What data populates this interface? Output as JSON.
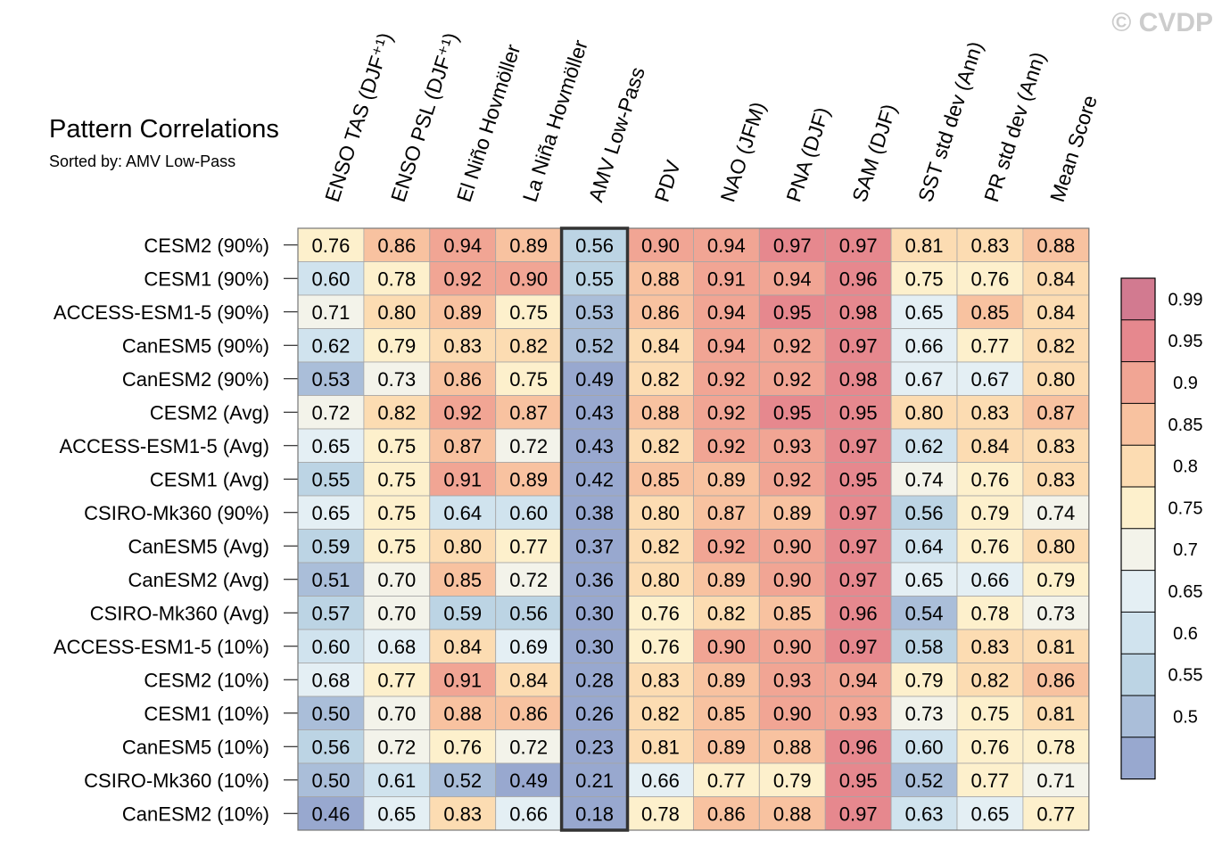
{
  "watermark": "© CVDP",
  "chart_data": {
    "type": "heatmap",
    "title": "Pattern Correlations",
    "subtitle": "Sorted by: AMV Low-Pass",
    "columns": [
      "ENSO TAS (DJF⁺¹)",
      "ENSO PSL (DJF⁺¹)",
      "El Niño Hovmöller",
      "La Niña Hovmöller",
      "AMV Low-Pass",
      "PDV",
      "NAO (JFM)",
      "PNA (DJF)",
      "SAM (DJF)",
      "SST std dev (Ann)",
      "PR std dev (Ann)",
      "Mean Score"
    ],
    "highlighted_column": "AMV Low-Pass",
    "rows": [
      {
        "label": "CESM2 (90%)",
        "values": [
          "0.76",
          "0.86",
          "0.94",
          "0.89",
          "0.56",
          "0.90",
          "0.94",
          "0.97",
          "0.97",
          "0.81",
          "0.83",
          "0.88"
        ]
      },
      {
        "label": "CESM1 (90%)",
        "values": [
          "0.60",
          "0.78",
          "0.92",
          "0.90",
          "0.55",
          "0.88",
          "0.91",
          "0.94",
          "0.96",
          "0.75",
          "0.76",
          "0.84"
        ]
      },
      {
        "label": "ACCESS-ESM1-5 (90%)",
        "values": [
          "0.71",
          "0.80",
          "0.89",
          "0.75",
          "0.53",
          "0.86",
          "0.94",
          "0.95",
          "0.98",
          "0.65",
          "0.85",
          "0.84"
        ]
      },
      {
        "label": "CanESM5 (90%)",
        "values": [
          "0.62",
          "0.79",
          "0.83",
          "0.82",
          "0.52",
          "0.84",
          "0.94",
          "0.92",
          "0.97",
          "0.66",
          "0.77",
          "0.82"
        ]
      },
      {
        "label": "CanESM2 (90%)",
        "values": [
          "0.53",
          "0.73",
          "0.86",
          "0.75",
          "0.49",
          "0.82",
          "0.92",
          "0.92",
          "0.98",
          "0.67",
          "0.67",
          "0.80"
        ]
      },
      {
        "label": "CESM2 (Avg)",
        "values": [
          "0.72",
          "0.82",
          "0.92",
          "0.87",
          "0.43",
          "0.88",
          "0.92",
          "0.95",
          "0.95",
          "0.80",
          "0.83",
          "0.87"
        ]
      },
      {
        "label": "ACCESS-ESM1-5 (Avg)",
        "values": [
          "0.65",
          "0.75",
          "0.87",
          "0.72",
          "0.43",
          "0.82",
          "0.92",
          "0.93",
          "0.97",
          "0.62",
          "0.84",
          "0.83"
        ]
      },
      {
        "label": "CESM1 (Avg)",
        "values": [
          "0.55",
          "0.75",
          "0.91",
          "0.89",
          "0.42",
          "0.85",
          "0.89",
          "0.92",
          "0.95",
          "0.74",
          "0.76",
          "0.83"
        ]
      },
      {
        "label": "CSIRO-Mk360 (90%)",
        "values": [
          "0.65",
          "0.75",
          "0.64",
          "0.60",
          "0.38",
          "0.80",
          "0.87",
          "0.89",
          "0.97",
          "0.56",
          "0.79",
          "0.74"
        ]
      },
      {
        "label": "CanESM5 (Avg)",
        "values": [
          "0.59",
          "0.75",
          "0.80",
          "0.77",
          "0.37",
          "0.82",
          "0.92",
          "0.90",
          "0.97",
          "0.64",
          "0.76",
          "0.80"
        ]
      },
      {
        "label": "CanESM2 (Avg)",
        "values": [
          "0.51",
          "0.70",
          "0.85",
          "0.72",
          "0.36",
          "0.80",
          "0.89",
          "0.90",
          "0.97",
          "0.65",
          "0.66",
          "0.79"
        ]
      },
      {
        "label": "CSIRO-Mk360 (Avg)",
        "values": [
          "0.57",
          "0.70",
          "0.59",
          "0.56",
          "0.30",
          "0.76",
          "0.82",
          "0.85",
          "0.96",
          "0.54",
          "0.78",
          "0.73"
        ]
      },
      {
        "label": "ACCESS-ESM1-5 (10%)",
        "values": [
          "0.60",
          "0.68",
          "0.84",
          "0.69",
          "0.30",
          "0.76",
          "0.90",
          "0.90",
          "0.97",
          "0.58",
          "0.83",
          "0.81"
        ]
      },
      {
        "label": "CESM2 (10%)",
        "values": [
          "0.68",
          "0.77",
          "0.91",
          "0.84",
          "0.28",
          "0.83",
          "0.89",
          "0.93",
          "0.94",
          "0.79",
          "0.82",
          "0.86"
        ]
      },
      {
        "label": "CESM1 (10%)",
        "values": [
          "0.50",
          "0.70",
          "0.88",
          "0.86",
          "0.26",
          "0.82",
          "0.85",
          "0.90",
          "0.93",
          "0.73",
          "0.75",
          "0.81"
        ]
      },
      {
        "label": "CanESM5 (10%)",
        "values": [
          "0.56",
          "0.72",
          "0.76",
          "0.72",
          "0.23",
          "0.81",
          "0.89",
          "0.88",
          "0.96",
          "0.60",
          "0.76",
          "0.78"
        ]
      },
      {
        "label": "CSIRO-Mk360 (10%)",
        "values": [
          "0.50",
          "0.61",
          "0.52",
          "0.49",
          "0.21",
          "0.66",
          "0.77",
          "0.79",
          "0.95",
          "0.52",
          "0.77",
          "0.71"
        ]
      },
      {
        "label": "CanESM2 (10%)",
        "values": [
          "0.46",
          "0.65",
          "0.83",
          "0.66",
          "0.18",
          "0.78",
          "0.86",
          "0.88",
          "0.97",
          "0.63",
          "0.65",
          "0.77"
        ]
      }
    ],
    "colorbar": {
      "boundaries": [
        0.5,
        0.55,
        0.6,
        0.65,
        0.7,
        0.75,
        0.8,
        0.85,
        0.9,
        0.95,
        0.99
      ],
      "labels": [
        "0.5",
        "0.55",
        "0.6",
        "0.65",
        "0.7",
        "0.75",
        "0.8",
        "0.85",
        "0.9",
        "0.95",
        "0.99"
      ],
      "colors": [
        "#98a8cf",
        "#aabed9",
        "#bcd4e4",
        "#d0e3ee",
        "#e4eff4",
        "#f3f3ea",
        "#fdf0cc",
        "#fcdcb2",
        "#f8c2a0",
        "#f1a594",
        "#e6888e",
        "#d27a90"
      ]
    }
  }
}
